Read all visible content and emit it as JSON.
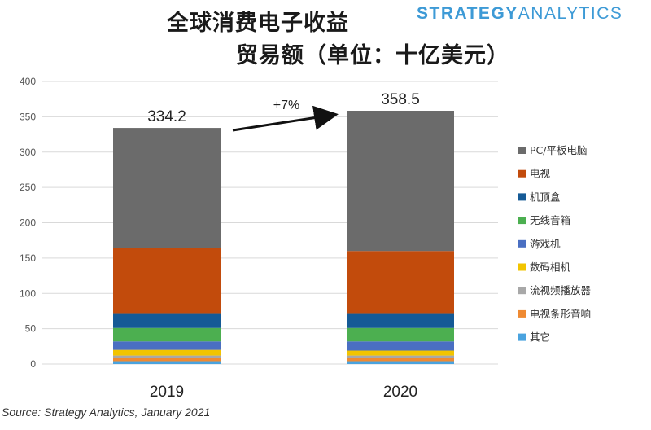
{
  "title": "全球消费电子收益",
  "subtitle": "贸易额（单位：十亿美元）",
  "brand": {
    "part1": "STRATEGY",
    "part2": "ANALYTICS"
  },
  "source": "Source: Strategy Analytics, January 2021",
  "colors": {
    "PC/平板电脑": "#6b6b6b",
    "电视": "#c24b0c",
    "机顶盒": "#155a96",
    "无线音箱": "#4caf50",
    "游戏机": "#4a6fc2",
    "数码相机": "#f2c400",
    "流视频播放器": "#a8a8a8",
    "电视条形音响": "#ef8a32",
    "其它": "#4aa3df"
  },
  "chart_data": {
    "type": "bar",
    "stacked": true,
    "categories": [
      "2019",
      "2020"
    ],
    "totals": [
      "334.2",
      "358.5"
    ],
    "annotation": "+7%",
    "ylim": [
      0,
      400
    ],
    "yticks": [
      0,
      50,
      100,
      150,
      200,
      250,
      300,
      350,
      400
    ],
    "grid": true,
    "legend_position": "right",
    "series": [
      {
        "name": "其它",
        "values": [
          4,
          4
        ]
      },
      {
        "name": "电视条形音响",
        "values": [
          5,
          5
        ]
      },
      {
        "name": "流视频播放器",
        "values": [
          3,
          3
        ]
      },
      {
        "name": "数码相机",
        "values": [
          8,
          7
        ]
      },
      {
        "name": "游戏机",
        "values": [
          12,
          13
        ]
      },
      {
        "name": "无线音箱",
        "values": [
          19,
          19
        ]
      },
      {
        "name": "机顶盒",
        "values": [
          21,
          21
        ]
      },
      {
        "name": "电视",
        "values": [
          92,
          88
        ]
      },
      {
        "name": "PC/平板电脑",
        "values": [
          170.2,
          198.5
        ]
      }
    ],
    "legend_order": [
      "PC/平板电脑",
      "电视",
      "机顶盒",
      "无线音箱",
      "游戏机",
      "数码相机",
      "流视频播放器",
      "电视条形音响",
      "其它"
    ]
  }
}
